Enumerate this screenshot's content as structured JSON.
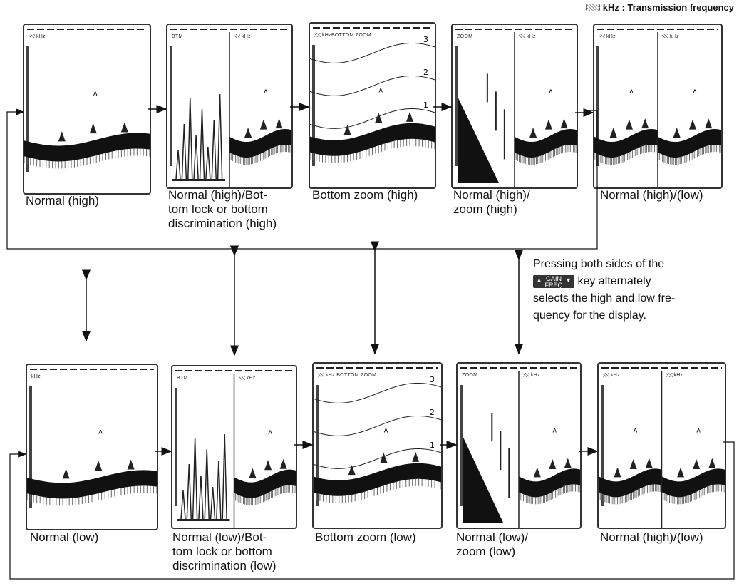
{
  "legend": {
    "text": "kHz : Transmission frequency"
  },
  "top_row": [
    {
      "caption": "Normal (high)",
      "panes": [
        {
          "label": "kHz",
          "shade": true
        }
      ]
    },
    {
      "caption": "Normal (high)/Bot-\ntom lock or bottom\ndiscrimination (high)",
      "panes": [
        {
          "label": "BTM",
          "shade": false
        },
        {
          "label": "kHz",
          "shade": true
        }
      ]
    },
    {
      "caption": "Bottom zoom (high)",
      "panes": [
        {
          "label": "kHzBOTTOM ZOOM",
          "shade": true
        }
      ],
      "zoom_marks": [
        "3",
        "2",
        "1"
      ]
    },
    {
      "caption": "Normal (high)/\nzoom (high)",
      "panes": [
        {
          "label": "ZOOM",
          "shade": false
        },
        {
          "label": "kHz",
          "shade": true
        }
      ]
    },
    {
      "caption": "Normal (high)/(low)",
      "panes": [
        {
          "label": "kHz",
          "shade": true
        },
        {
          "label": "kHz",
          "shade": true
        }
      ]
    }
  ],
  "bottom_row": [
    {
      "caption": "Normal (low)",
      "panes": [
        {
          "label": "kHz",
          "shade": false
        }
      ]
    },
    {
      "caption": "Normal (low)/Bot-\ntom lock or bottom\ndiscrimination (low)",
      "panes": [
        {
          "label": "BTM",
          "shade": false
        },
        {
          "label": "kHz",
          "shade": true
        }
      ]
    },
    {
      "caption": "Bottom zoom (low)",
      "panes": [
        {
          "label": "kHz BOTTOM ZOOM",
          "shade": true
        }
      ],
      "zoom_marks": [
        "3",
        "2",
        "1"
      ]
    },
    {
      "caption": "Normal (low)/\nzoom (low)",
      "panes": [
        {
          "label": "ZOOM",
          "shade": false
        },
        {
          "label": "kHz",
          "shade": true
        }
      ]
    },
    {
      "caption": "Normal (high)/(low)",
      "panes": [
        {
          "label": "kHz",
          "shade": true
        },
        {
          "label": "kHz",
          "shade": true
        }
      ]
    }
  ],
  "note": {
    "line1": "Pressing both sides of the",
    "key_top": "GAIN",
    "key_bottom": "FREQ",
    "line2": "key alternately",
    "line3": "selects the high and low fre-",
    "line4": "quency for the display."
  }
}
